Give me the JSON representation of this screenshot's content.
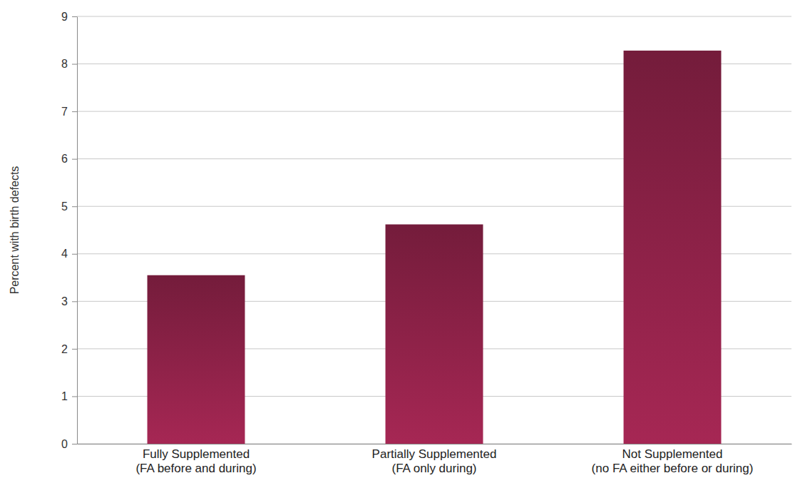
{
  "chart_data": {
    "type": "bar",
    "y_label": "Percent with birth defects",
    "categories": [
      "Fully Supplemented (FA before and during)",
      "Partially Supplemented (FA only during)",
      "Not Supplemented (no FA either before or during)"
    ],
    "values": [
      3.55,
      4.62,
      8.28
    ],
    "color": "#8b2146",
    "ylim": [
      0,
      9
    ],
    "yticks": [
      0,
      1,
      2,
      3,
      4,
      5,
      6,
      7,
      8,
      9
    ],
    "grid": true
  }
}
